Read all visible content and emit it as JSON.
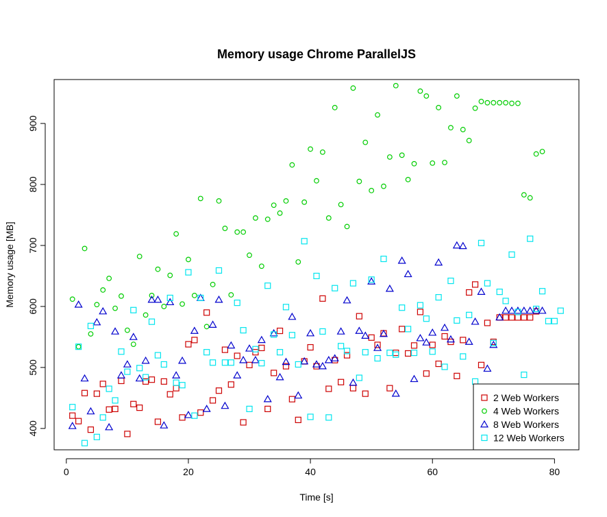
{
  "chart_data": {
    "type": "scatter",
    "title": "Memory usage Chrome ParallelJS",
    "xlabel": "Time [s]",
    "ylabel": "Memory usage [MB]",
    "xlim": [
      -2,
      84
    ],
    "ylim": [
      365,
      972
    ],
    "xticks": [
      0,
      20,
      40,
      60,
      80
    ],
    "yticks": [
      400,
      500,
      600,
      700,
      800,
      900
    ],
    "grid": false,
    "legend_position": "bottom-right",
    "series": [
      {
        "name": "2 Web Workers",
        "marker": "square",
        "color": "#CD0000",
        "points": [
          [
            1,
            421
          ],
          [
            2,
            412
          ],
          [
            3,
            458
          ],
          [
            4,
            398
          ],
          [
            5,
            457
          ],
          [
            6,
            473
          ],
          [
            7,
            431
          ],
          [
            8,
            432
          ],
          [
            9,
            478
          ],
          [
            10,
            391
          ],
          [
            11,
            440
          ],
          [
            12,
            434
          ],
          [
            13,
            477
          ],
          [
            14,
            480
          ],
          [
            15,
            411
          ],
          [
            16,
            477
          ],
          [
            17,
            456
          ],
          [
            18,
            466
          ],
          [
            19,
            418
          ],
          [
            20,
            538
          ],
          [
            21,
            545
          ],
          [
            22,
            426
          ],
          [
            23,
            590
          ],
          [
            24,
            446
          ],
          [
            25,
            462
          ],
          [
            26,
            529
          ],
          [
            27,
            472
          ],
          [
            28,
            519
          ],
          [
            29,
            410
          ],
          [
            30,
            504
          ],
          [
            31,
            525
          ],
          [
            32,
            532
          ],
          [
            33,
            432
          ],
          [
            34,
            491
          ],
          [
            35,
            560
          ],
          [
            36,
            502
          ],
          [
            37,
            448
          ],
          [
            38,
            414
          ],
          [
            39,
            510
          ],
          [
            40,
            533
          ],
          [
            41,
            502
          ],
          [
            42,
            613
          ],
          [
            43,
            465
          ],
          [
            44,
            512
          ],
          [
            45,
            476
          ],
          [
            46,
            520
          ],
          [
            47,
            466
          ],
          [
            48,
            584
          ],
          [
            49,
            457
          ],
          [
            50,
            549
          ],
          [
            51,
            537
          ],
          [
            52,
            556
          ],
          [
            53,
            466
          ],
          [
            54,
            524
          ],
          [
            55,
            563
          ],
          [
            56,
            523
          ],
          [
            57,
            536
          ],
          [
            58,
            591
          ],
          [
            59,
            490
          ],
          [
            60,
            537
          ],
          [
            61,
            506
          ],
          [
            62,
            551
          ],
          [
            63,
            542
          ],
          [
            64,
            486
          ],
          [
            65,
            545
          ],
          [
            66,
            623
          ],
          [
            67,
            636
          ],
          [
            68,
            504
          ],
          [
            69,
            573
          ],
          [
            70,
            542
          ],
          [
            71,
            582
          ],
          [
            72,
            582
          ],
          [
            73,
            582
          ],
          [
            74,
            582
          ],
          [
            75,
            582
          ],
          [
            76,
            582
          ],
          [
            77,
            592
          ]
        ]
      },
      {
        "name": "4 Web Workers",
        "marker": "circle",
        "color": "#00CD00",
        "points": [
          [
            1,
            612
          ],
          [
            2,
            534
          ],
          [
            3,
            695
          ],
          [
            4,
            555
          ],
          [
            5,
            603
          ],
          [
            6,
            627
          ],
          [
            7,
            646
          ],
          [
            8,
            597
          ],
          [
            9,
            617
          ],
          [
            10,
            561
          ],
          [
            11,
            538
          ],
          [
            12,
            682
          ],
          [
            13,
            586
          ],
          [
            14,
            618
          ],
          [
            15,
            661
          ],
          [
            16,
            600
          ],
          [
            17,
            651
          ],
          [
            18,
            719
          ],
          [
            19,
            604
          ],
          [
            20,
            677
          ],
          [
            21,
            618
          ],
          [
            22,
            777
          ],
          [
            23,
            567
          ],
          [
            24,
            636
          ],
          [
            25,
            773
          ],
          [
            26,
            728
          ],
          [
            27,
            619
          ],
          [
            28,
            722
          ],
          [
            29,
            722
          ],
          [
            30,
            684
          ],
          [
            31,
            745
          ],
          [
            32,
            666
          ],
          [
            33,
            743
          ],
          [
            34,
            766
          ],
          [
            35,
            753
          ],
          [
            36,
            773
          ],
          [
            37,
            832
          ],
          [
            38,
            673
          ],
          [
            39,
            771
          ],
          [
            40,
            858
          ],
          [
            41,
            806
          ],
          [
            42,
            853
          ],
          [
            43,
            745
          ],
          [
            44,
            926
          ],
          [
            45,
            767
          ],
          [
            46,
            731
          ],
          [
            47,
            958
          ],
          [
            48,
            805
          ],
          [
            49,
            869
          ],
          [
            50,
            790
          ],
          [
            51,
            914
          ],
          [
            52,
            797
          ],
          [
            53,
            845
          ],
          [
            54,
            962
          ],
          [
            55,
            848
          ],
          [
            56,
            808
          ],
          [
            57,
            834
          ],
          [
            58,
            953
          ],
          [
            59,
            945
          ],
          [
            60,
            835
          ],
          [
            61,
            926
          ],
          [
            62,
            836
          ],
          [
            63,
            893
          ],
          [
            64,
            945
          ],
          [
            65,
            890
          ],
          [
            66,
            872
          ],
          [
            67,
            925
          ],
          [
            68,
            936
          ],
          [
            69,
            934
          ],
          [
            70,
            934
          ],
          [
            71,
            934
          ],
          [
            72,
            934
          ],
          [
            73,
            933
          ],
          [
            74,
            933
          ],
          [
            75,
            783
          ],
          [
            76,
            778
          ],
          [
            77,
            850
          ],
          [
            78,
            854
          ]
        ]
      },
      {
        "name": "8 Web Workers",
        "marker": "triangle",
        "color": "#0000CD",
        "points": [
          [
            1,
            404
          ],
          [
            2,
            603
          ],
          [
            3,
            482
          ],
          [
            4,
            428
          ],
          [
            5,
            574
          ],
          [
            6,
            592
          ],
          [
            7,
            402
          ],
          [
            8,
            559
          ],
          [
            9,
            487
          ],
          [
            10,
            505
          ],
          [
            11,
            550
          ],
          [
            12,
            482
          ],
          [
            13,
            511
          ],
          [
            14,
            611
          ],
          [
            15,
            611
          ],
          [
            16,
            405
          ],
          [
            17,
            607
          ],
          [
            18,
            487
          ],
          [
            19,
            511
          ],
          [
            20,
            422
          ],
          [
            21,
            560
          ],
          [
            22,
            614
          ],
          [
            23,
            432
          ],
          [
            24,
            570
          ],
          [
            25,
            611
          ],
          [
            26,
            437
          ],
          [
            27,
            536
          ],
          [
            28,
            487
          ],
          [
            29,
            512
          ],
          [
            30,
            531
          ],
          [
            31,
            512
          ],
          [
            32,
            545
          ],
          [
            33,
            448
          ],
          [
            34,
            556
          ],
          [
            35,
            484
          ],
          [
            36,
            509
          ],
          [
            37,
            583
          ],
          [
            38,
            454
          ],
          [
            39,
            510
          ],
          [
            40,
            556
          ],
          [
            41,
            505
          ],
          [
            42,
            502
          ],
          [
            43,
            512
          ],
          [
            44,
            515
          ],
          [
            45,
            559
          ],
          [
            46,
            610
          ],
          [
            47,
            475
          ],
          [
            48,
            560
          ],
          [
            49,
            552
          ],
          [
            50,
            641
          ],
          [
            51,
            532
          ],
          [
            52,
            555
          ],
          [
            53,
            629
          ],
          [
            54,
            457
          ],
          [
            55,
            675
          ],
          [
            56,
            653
          ],
          [
            57,
            481
          ],
          [
            58,
            548
          ],
          [
            59,
            541
          ],
          [
            60,
            557
          ],
          [
            61,
            672
          ],
          [
            62,
            565
          ],
          [
            63,
            546
          ],
          [
            64,
            700
          ],
          [
            65,
            699
          ],
          [
            66,
            542
          ],
          [
            67,
            575
          ],
          [
            68,
            624
          ],
          [
            69,
            498
          ],
          [
            70,
            537
          ],
          [
            71,
            582
          ],
          [
            72,
            593
          ],
          [
            73,
            593
          ],
          [
            74,
            593
          ],
          [
            75,
            593
          ],
          [
            76,
            593
          ],
          [
            77,
            593
          ],
          [
            78,
            593
          ]
        ]
      },
      {
        "name": "12 Web Workers",
        "marker": "square",
        "color": "#00E5EE",
        "points": [
          [
            1,
            435
          ],
          [
            2,
            534
          ],
          [
            3,
            376
          ],
          [
            4,
            568
          ],
          [
            5,
            386
          ],
          [
            6,
            418
          ],
          [
            7,
            465
          ],
          [
            8,
            446
          ],
          [
            9,
            526
          ],
          [
            10,
            493
          ],
          [
            11,
            594
          ],
          [
            12,
            499
          ],
          [
            13,
            484
          ],
          [
            14,
            575
          ],
          [
            15,
            520
          ],
          [
            16,
            505
          ],
          [
            17,
            614
          ],
          [
            18,
            475
          ],
          [
            19,
            471
          ],
          [
            20,
            656
          ],
          [
            21,
            421
          ],
          [
            22,
            614
          ],
          [
            23,
            525
          ],
          [
            24,
            508
          ],
          [
            25,
            659
          ],
          [
            26,
            508
          ],
          [
            27,
            508
          ],
          [
            28,
            606
          ],
          [
            29,
            561
          ],
          [
            30,
            432
          ],
          [
            31,
            530
          ],
          [
            32,
            507
          ],
          [
            33,
            634
          ],
          [
            34,
            554
          ],
          [
            35,
            525
          ],
          [
            36,
            599
          ],
          [
            37,
            553
          ],
          [
            38,
            505
          ],
          [
            39,
            707
          ],
          [
            40,
            419
          ],
          [
            41,
            650
          ],
          [
            42,
            559
          ],
          [
            43,
            418
          ],
          [
            44,
            630
          ],
          [
            45,
            535
          ],
          [
            46,
            527
          ],
          [
            47,
            638
          ],
          [
            48,
            483
          ],
          [
            49,
            525
          ],
          [
            50,
            644
          ],
          [
            51,
            515
          ],
          [
            52,
            678
          ],
          [
            53,
            524
          ],
          [
            54,
            521
          ],
          [
            55,
            598
          ],
          [
            56,
            563
          ],
          [
            57,
            524
          ],
          [
            58,
            602
          ],
          [
            59,
            580
          ],
          [
            60,
            526
          ],
          [
            61,
            615
          ],
          [
            62,
            501
          ],
          [
            63,
            642
          ],
          [
            64,
            577
          ],
          [
            65,
            518
          ],
          [
            66,
            586
          ],
          [
            67,
            477
          ],
          [
            68,
            704
          ],
          [
            69,
            638
          ],
          [
            70,
            540
          ],
          [
            71,
            624
          ],
          [
            72,
            609
          ],
          [
            73,
            685
          ],
          [
            74,
            591
          ],
          [
            75,
            488
          ],
          [
            76,
            711
          ],
          [
            77,
            596
          ],
          [
            78,
            625
          ],
          [
            79,
            576
          ],
          [
            80,
            576
          ],
          [
            81,
            593
          ]
        ]
      }
    ]
  }
}
